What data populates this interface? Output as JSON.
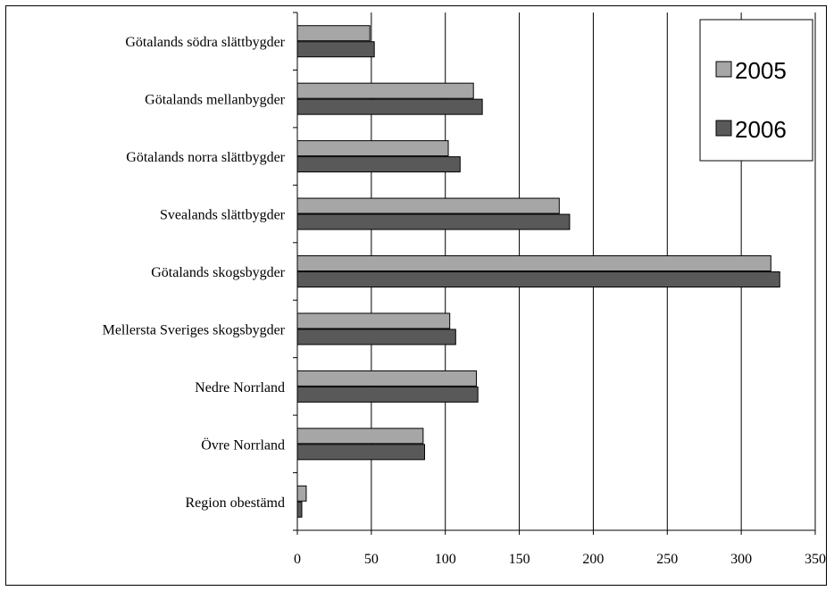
{
  "chart_data": {
    "type": "bar",
    "orientation": "horizontal",
    "categories": [
      "Götalands södra slättbygder",
      "Götalands mellanbygder",
      "Götalands norra slättbygder",
      "Svealands slättbygder",
      "Götalands skogsbygder",
      "Mellersta Sveriges skogsbygder",
      "Nedre Norrland",
      "Övre Norrland",
      "Region obestämd"
    ],
    "series": [
      {
        "name": "2005",
        "color": "#a6a6a6",
        "values": [
          49,
          119,
          102,
          177,
          320,
          103,
          121,
          85,
          6
        ]
      },
      {
        "name": "2006",
        "color": "#595959",
        "values": [
          52,
          125,
          110,
          184,
          326,
          107,
          122,
          86,
          3
        ]
      }
    ],
    "xlim": [
      0,
      350
    ],
    "xticks": [
      "0",
      "50",
      "100",
      "150",
      "200",
      "250",
      "300",
      "350"
    ],
    "grid": "vertical",
    "legend_position": "top-right"
  }
}
